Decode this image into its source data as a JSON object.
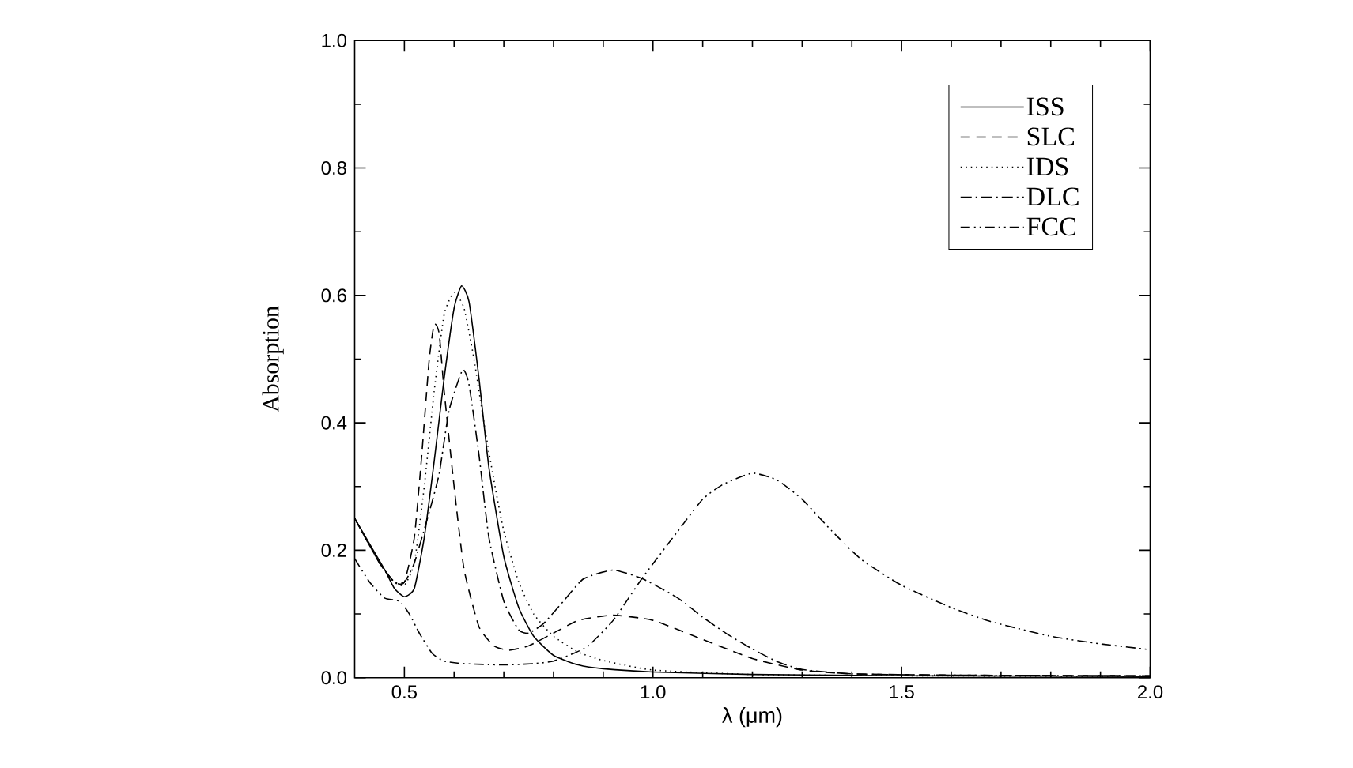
{
  "chart_data": {
    "type": "line",
    "xlabel": "λ (μm)",
    "ylabel": "Absorption",
    "xlim": [
      0.4,
      2.0
    ],
    "ylim": [
      0.0,
      1.0
    ],
    "xticks": [
      0.5,
      {
        "value": 1.0,
        "label": "1.0"
      },
      1.5,
      {
        "value": 2.0,
        "label": "2.0"
      }
    ],
    "yticks": [
      {
        "value": 0.0,
        "label": "0.0"
      },
      0.2,
      0.4,
      0.6,
      0.8,
      {
        "value": 1.0,
        "label": "1.0"
      }
    ],
    "legend": "top right",
    "grid": false,
    "marker": "none",
    "series": [
      {
        "name": "ISS",
        "color": "#000000",
        "line_style": "solid",
        "x": [
          0.4,
          0.43,
          0.46,
          0.48,
          0.5,
          0.52,
          0.54,
          0.56,
          0.58,
          0.6,
          0.615,
          0.63,
          0.65,
          0.67,
          0.7,
          0.73,
          0.76,
          0.8,
          0.85,
          0.9,
          1.0,
          1.2,
          1.5,
          2.0
        ],
        "values": [
          0.25,
          0.21,
          0.17,
          0.14,
          0.127,
          0.14,
          0.22,
          0.34,
          0.47,
          0.58,
          0.615,
          0.59,
          0.47,
          0.33,
          0.19,
          0.11,
          0.065,
          0.035,
          0.02,
          0.014,
          0.009,
          0.005,
          0.003,
          0.002
        ]
      },
      {
        "name": "SLC",
        "color": "#000000",
        "line_style": "dashed",
        "x": [
          0.4,
          0.45,
          0.48,
          0.5,
          0.52,
          0.535,
          0.55,
          0.56,
          0.57,
          0.58,
          0.6,
          0.62,
          0.65,
          0.68,
          0.71,
          0.75,
          0.8,
          0.85,
          0.92,
          1.0,
          1.1,
          1.2,
          1.3,
          1.4,
          1.6,
          2.0
        ],
        "values": [
          0.25,
          0.18,
          0.15,
          0.15,
          0.22,
          0.35,
          0.5,
          0.555,
          0.54,
          0.45,
          0.3,
          0.17,
          0.08,
          0.05,
          0.043,
          0.05,
          0.07,
          0.09,
          0.098,
          0.09,
          0.06,
          0.03,
          0.012,
          0.006,
          0.004,
          0.003
        ]
      },
      {
        "name": "IDS",
        "color": "#000000",
        "line_style": "dotted",
        "x": [
          0.4,
          0.45,
          0.48,
          0.5,
          0.52,
          0.54,
          0.56,
          0.58,
          0.6,
          0.62,
          0.64,
          0.66,
          0.68,
          0.7,
          0.73,
          0.76,
          0.8,
          0.85,
          0.9,
          1.0,
          1.2,
          1.5,
          2.0
        ],
        "values": [
          0.25,
          0.18,
          0.15,
          0.145,
          0.18,
          0.3,
          0.45,
          0.57,
          0.605,
          0.58,
          0.5,
          0.4,
          0.31,
          0.23,
          0.15,
          0.1,
          0.065,
          0.04,
          0.027,
          0.012,
          0.005,
          0.003,
          0.002
        ]
      },
      {
        "name": "DLC",
        "color": "#000000",
        "line_style": "dashdot",
        "x": [
          0.4,
          0.45,
          0.48,
          0.5,
          0.52,
          0.55,
          0.57,
          0.59,
          0.617,
          0.63,
          0.65,
          0.67,
          0.7,
          0.73,
          0.75,
          0.78,
          0.82,
          0.86,
          0.92,
          0.98,
          1.05,
          1.1,
          1.15,
          1.2,
          1.25,
          1.3,
          1.4,
          1.6,
          2.0
        ],
        "values": [
          0.25,
          0.18,
          0.15,
          0.15,
          0.18,
          0.26,
          0.32,
          0.42,
          0.483,
          0.46,
          0.35,
          0.22,
          0.12,
          0.075,
          0.07,
          0.085,
          0.12,
          0.155,
          0.169,
          0.155,
          0.125,
          0.095,
          0.068,
          0.045,
          0.025,
          0.013,
          0.006,
          0.004,
          0.003
        ]
      },
      {
        "name": "FCC",
        "color": "#000000",
        "line_style": "dashdotdot",
        "x": [
          0.4,
          0.43,
          0.46,
          0.49,
          0.51,
          0.53,
          0.556,
          0.58,
          0.62,
          0.7,
          0.76,
          0.8,
          0.84,
          0.87,
          0.92,
          0.98,
          1.05,
          1.1,
          1.14,
          1.2,
          1.25,
          1.3,
          1.36,
          1.42,
          1.5,
          1.6,
          1.68,
          1.8,
          1.9,
          2.0
        ],
        "values": [
          0.187,
          0.15,
          0.125,
          0.12,
          0.1,
          0.07,
          0.038,
          0.026,
          0.022,
          0.02,
          0.022,
          0.026,
          0.038,
          0.05,
          0.09,
          0.158,
          0.23,
          0.28,
          0.303,
          0.321,
          0.31,
          0.28,
          0.23,
          0.185,
          0.145,
          0.11,
          0.088,
          0.065,
          0.053,
          0.044
        ]
      }
    ]
  }
}
